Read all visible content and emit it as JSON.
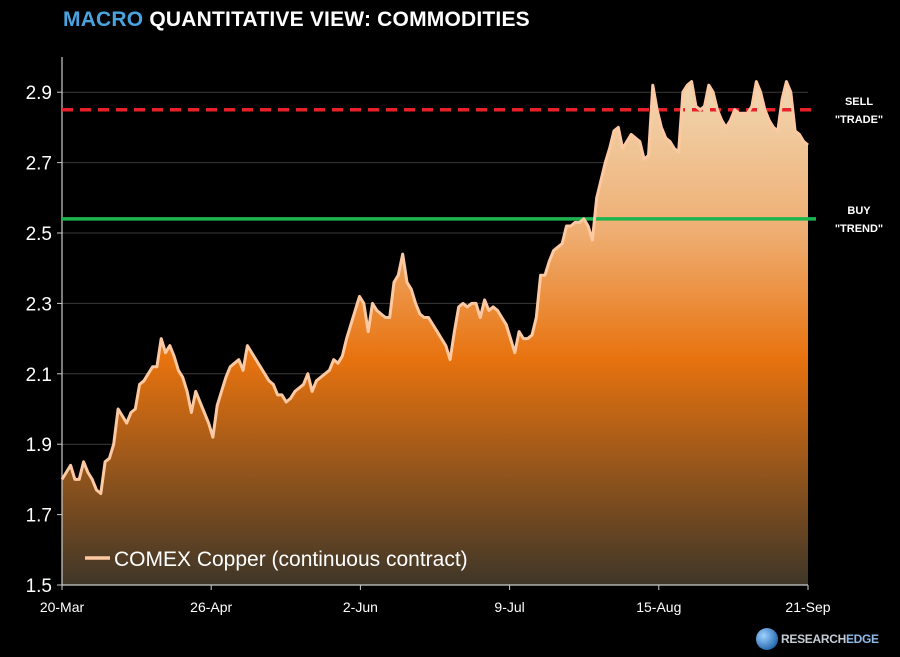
{
  "header": {
    "title_accent": "MACRO",
    "title_rest": "QUANTITATIVE VIEW: COMMODITIES"
  },
  "brand": {
    "part1": "RESEARCH",
    "part2": "EDGE"
  },
  "colors": {
    "line": "#fdc9a3",
    "sell": "#e8202a",
    "buy": "#1db34e",
    "accent": "#4aa3df",
    "fill_top": "#f0d7b2",
    "fill_mid": "#e8730f",
    "fill_bottom": "#3e3628"
  },
  "chart_data": {
    "type": "area",
    "legend": "COMEX Copper (continuous contract)",
    "legend_position": "bottom-left",
    "ylim": [
      1.5,
      3.0
    ],
    "yticks": [
      1.5,
      1.7,
      1.9,
      2.1,
      2.3,
      2.5,
      2.7,
      2.9
    ],
    "ytick_labels": [
      "1.5",
      "1.7",
      "1.9",
      "2.1",
      "2.3",
      "2.5",
      "2.7",
      "2.9"
    ],
    "xtick_labels": [
      "20-Mar",
      "26-Apr",
      "2-Jun",
      "9-Jul",
      "15-Aug",
      "21-Sep"
    ],
    "grid": true,
    "annotations": [
      {
        "name": "sell-line",
        "value": 2.85,
        "line1": "SELL",
        "line2": "\"TRADE\"",
        "style": "dashed"
      },
      {
        "name": "buy-line",
        "value": 2.54,
        "line1": "BUY",
        "line2": "\"TREND\"",
        "style": "solid"
      }
    ],
    "values": [
      1.8,
      1.82,
      1.84,
      1.8,
      1.8,
      1.85,
      1.82,
      1.8,
      1.77,
      1.76,
      1.85,
      1.86,
      1.9,
      2.0,
      1.98,
      1.96,
      1.99,
      2.0,
      2.07,
      2.08,
      2.1,
      2.12,
      2.12,
      2.2,
      2.16,
      2.18,
      2.15,
      2.11,
      2.09,
      2.05,
      1.99,
      2.05,
      2.02,
      1.99,
      1.96,
      1.92,
      2.01,
      2.05,
      2.09,
      2.12,
      2.13,
      2.14,
      2.11,
      2.18,
      2.16,
      2.14,
      2.12,
      2.1,
      2.08,
      2.07,
      2.04,
      2.04,
      2.02,
      2.03,
      2.05,
      2.06,
      2.07,
      2.1,
      2.05,
      2.08,
      2.09,
      2.1,
      2.11,
      2.14,
      2.13,
      2.15,
      2.2,
      2.24,
      2.28,
      2.32,
      2.3,
      2.22,
      2.3,
      2.28,
      2.27,
      2.26,
      2.26,
      2.36,
      2.38,
      2.44,
      2.36,
      2.34,
      2.3,
      2.27,
      2.26,
      2.26,
      2.24,
      2.22,
      2.2,
      2.18,
      2.14,
      2.22,
      2.29,
      2.3,
      2.29,
      2.3,
      2.3,
      2.26,
      2.31,
      2.28,
      2.29,
      2.28,
      2.26,
      2.24,
      2.2,
      2.16,
      2.22,
      2.2,
      2.2,
      2.21,
      2.26,
      2.38,
      2.38,
      2.42,
      2.45,
      2.46,
      2.47,
      2.52,
      2.52,
      2.53,
      2.53,
      2.54,
      2.52,
      2.48,
      2.6,
      2.65,
      2.7,
      2.74,
      2.79,
      2.8,
      2.74,
      2.76,
      2.78,
      2.77,
      2.76,
      2.71,
      2.72,
      2.92,
      2.85,
      2.8,
      2.77,
      2.76,
      2.74,
      2.73,
      2.9,
      2.92,
      2.93,
      2.86,
      2.85,
      2.86,
      2.92,
      2.9,
      2.85,
      2.82,
      2.8,
      2.82,
      2.85,
      2.84,
      2.84,
      2.84,
      2.86,
      2.93,
      2.9,
      2.85,
      2.82,
      2.8,
      2.79,
      2.88,
      2.93,
      2.9,
      2.79,
      2.78,
      2.76,
      2.75
    ]
  }
}
